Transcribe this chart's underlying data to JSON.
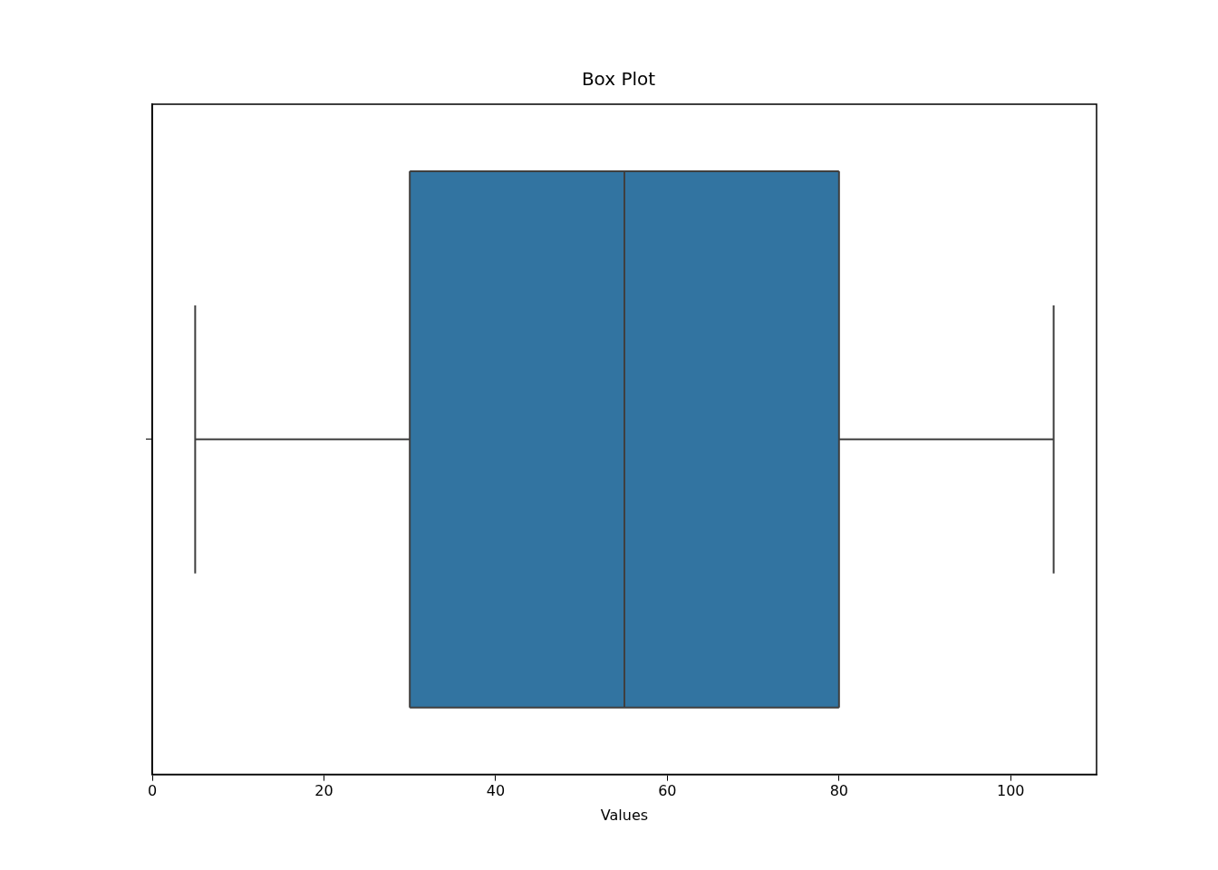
{
  "chart_data": {
    "type": "box",
    "title": "Box Plot",
    "xlabel": "Values",
    "orientation": "horizontal",
    "categories": [
      null
    ],
    "color": "#3274a1",
    "boxes": [
      {
        "low": 5,
        "q1": 30,
        "median": 55,
        "q3": 80,
        "high": 105
      }
    ],
    "xlim": [
      0,
      110
    ],
    "xticks": [
      0,
      20,
      40,
      60,
      80,
      100
    ]
  }
}
